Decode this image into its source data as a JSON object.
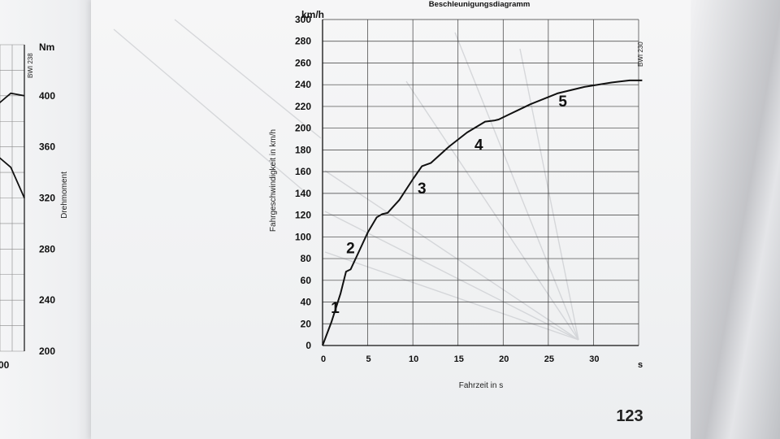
{
  "page_number": "123",
  "chart_data": [
    {
      "type": "line",
      "title": "Beschleunigungsdiagramm",
      "code": "BWI 230",
      "xlabel": "Fahrzeit in s",
      "x_unit": "s",
      "ylabel": "Fahrgeschwindigkeit in km/h",
      "y_unit": "km/h",
      "xlim": [
        0,
        35
      ],
      "ylim": [
        0,
        300
      ],
      "x_ticks": [
        0,
        5,
        10,
        15,
        20,
        25,
        30
      ],
      "y_ticks": [
        0,
        20,
        40,
        60,
        80,
        100,
        120,
        140,
        160,
        180,
        200,
        220,
        240,
        260,
        280,
        300
      ],
      "grid": true,
      "series": [
        {
          "x": [
            0,
            1,
            2,
            2.6,
            3.1,
            4,
            5,
            6,
            6.6,
            7.2,
            8.5,
            10,
            11,
            12,
            14,
            16,
            18,
            19,
            19.5,
            20.5,
            23,
            26,
            29,
            32,
            34,
            35.4
          ],
          "y": [
            0,
            22,
            48,
            68,
            70,
            86,
            104,
            118,
            121,
            122,
            134,
            153,
            165,
            168,
            183,
            196,
            206,
            207,
            208,
            212,
            222,
            232,
            238,
            242,
            244,
            244
          ]
        }
      ],
      "annotations": [
        {
          "text": "1",
          "x": 1.4,
          "y": 30
        },
        {
          "text": "2",
          "x": 3.1,
          "y": 85
        },
        {
          "text": "3",
          "x": 11,
          "y": 140
        },
        {
          "text": "4",
          "x": 17.3,
          "y": 180
        },
        {
          "text": "5",
          "x": 26.6,
          "y": 220
        }
      ]
    },
    {
      "type": "line",
      "title": "",
      "code": "BWI 238",
      "y_unit": "Nm",
      "ylabel": "Drehmoment",
      "ylim": [
        200,
        440
      ],
      "y_ticks": [
        200,
        240,
        280,
        320,
        360,
        400
      ],
      "x_ticks_visible": [
        "00"
      ],
      "grid": true,
      "series": [
        {
          "x": [
            0,
            1,
            2,
            3
          ],
          "y": [
            380,
            393,
            402,
            400
          ]
        },
        {
          "x": [
            0,
            1,
            2,
            3
          ],
          "y": [
            352,
            353,
            344,
            320
          ]
        }
      ]
    }
  ]
}
